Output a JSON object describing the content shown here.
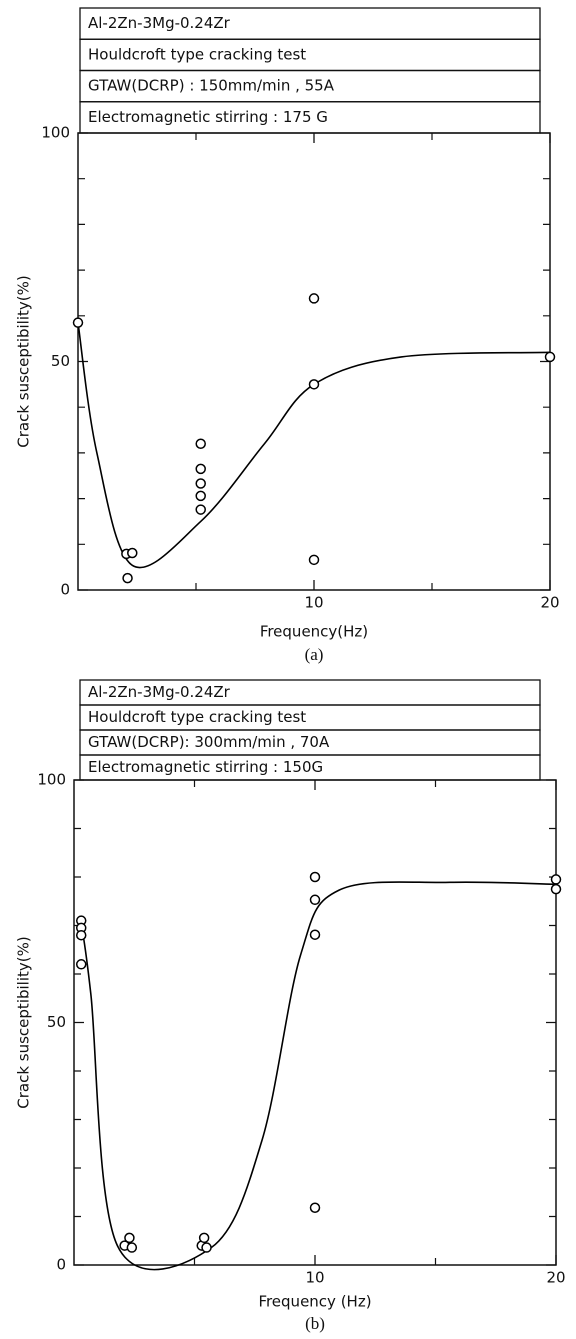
{
  "chart_data": [
    {
      "type": "scatter",
      "header": [
        "Al-2Zn-3Mg-0.24Zr",
        "Houldcroft type cracking test",
        "GTAW(DCRP) : 150mm/min , 55A",
        "Electromagnetic stirring : 175 G"
      ],
      "ylabel": "Crack susceptibility(%)",
      "xlabel": "Frequency(Hz)",
      "caption": "(a)",
      "xlim": [
        0,
        20
      ],
      "ylim": [
        0,
        100
      ],
      "xticks": [
        10,
        20
      ],
      "yticks": [
        0,
        50,
        100
      ],
      "xminorticks": [
        5,
        15
      ],
      "yminorticks": [
        10,
        20,
        30,
        40,
        60,
        70,
        80,
        90
      ],
      "series": [
        {
          "type": "scatter",
          "color": "#000000",
          "x": [
            0,
            2.05,
            2.3,
            2.1,
            5.2,
            5.2,
            5.2,
            5.2,
            5.2,
            10,
            10,
            10,
            20
          ],
          "values": [
            58.5,
            7.9,
            8.1,
            2.6,
            32,
            26.5,
            23.3,
            20.6,
            17.6,
            63.8,
            45,
            6.6,
            51
          ]
        },
        {
          "type": "line",
          "color": "#000000",
          "x": [
            0,
            0.8,
            2.3,
            5.2,
            7.9,
            10,
            13.7,
            20
          ],
          "values": [
            58.5,
            30,
            5.4,
            15,
            32,
            45,
            51,
            52
          ]
        }
      ]
    },
    {
      "type": "scatter",
      "header": [
        "Al-2Zn-3Mg-0.24Zr",
        "Houldcroft type cracking test",
        "GTAW(DCRP): 300mm/min , 70A",
        "Electromagnetic  stirring : 150G"
      ],
      "ylabel": "Crack susceptibility(%)",
      "xlabel": "Frequency (Hz)",
      "caption": "(b)",
      "xlim": [
        0,
        20
      ],
      "ylim": [
        0,
        100
      ],
      "xticks": [
        10,
        20
      ],
      "yticks": [
        0,
        50,
        100
      ],
      "xminorticks": [
        5,
        15
      ],
      "yminorticks": [
        10,
        20,
        30,
        40,
        60,
        70,
        80,
        90
      ],
      "series": [
        {
          "type": "scatter",
          "color": "#000000",
          "x": [
            0.3,
            0.3,
            0.3,
            0.3,
            2.1,
            2.3,
            2.4,
            5.3,
            5.4,
            5.5,
            10,
            10,
            10,
            10,
            20,
            20
          ],
          "values": [
            71,
            69.5,
            68,
            62,
            4,
            5.6,
            3.6,
            4,
            5.6,
            3.6,
            80,
            75.3,
            68.1,
            11.8,
            79.5,
            77.5
          ]
        },
        {
          "type": "line",
          "color": "#000000",
          "x": [
            0.3,
            0.7,
            1.8,
            5.7,
            7.8,
            9.4,
            11,
            15.6,
            20
          ],
          "values": [
            70.5,
            55.8,
            4,
            3.6,
            25.7,
            63.9,
            77.3,
            78.9,
            78.5
          ]
        }
      ]
    }
  ]
}
